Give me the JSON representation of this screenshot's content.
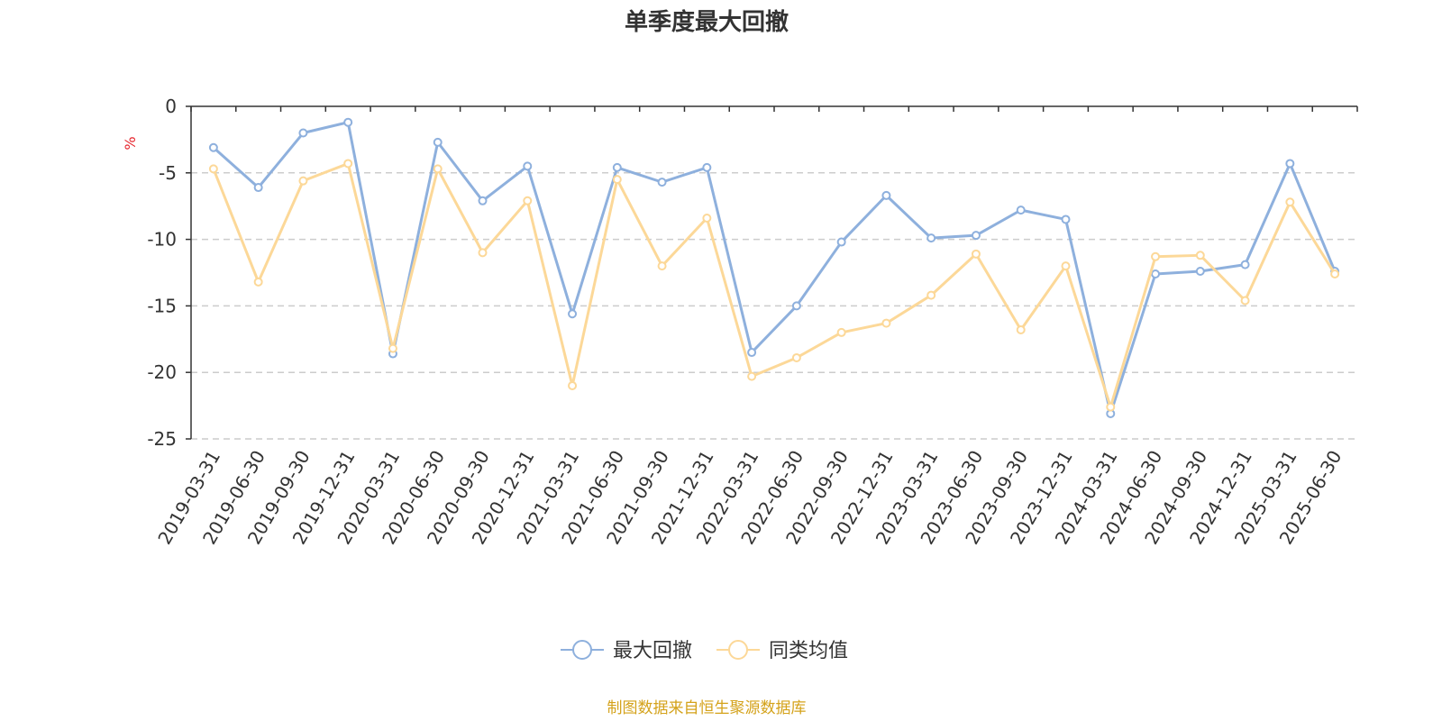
{
  "chart_data": {
    "type": "line",
    "title": "单季度最大回撤",
    "ylabel": "%",
    "ylim": [
      -25,
      0
    ],
    "yticks": [
      0,
      -5,
      -10,
      -15,
      -20,
      -25
    ],
    "grid": true,
    "legend_position": "bottom-center",
    "categories": [
      "2019-03-31",
      "2019-06-30",
      "2019-09-30",
      "2019-12-31",
      "2020-03-31",
      "2020-06-30",
      "2020-09-30",
      "2020-12-31",
      "2021-03-31",
      "2021-06-30",
      "2021-09-30",
      "2021-12-31",
      "2022-03-31",
      "2022-06-30",
      "2022-09-30",
      "2022-12-31",
      "2023-03-31",
      "2023-06-30",
      "2023-09-30",
      "2023-12-31",
      "2024-03-31",
      "2024-06-30",
      "2024-09-30",
      "2024-12-31",
      "2025-03-31",
      "2025-06-30"
    ],
    "series": [
      {
        "name": "最大回撤",
        "color": "#8eb0dd",
        "values": [
          -3.1,
          -6.1,
          -2.0,
          -1.2,
          -18.6,
          -2.7,
          -7.1,
          -4.5,
          -15.6,
          -4.6,
          -5.7,
          -4.6,
          -18.5,
          -15.0,
          -10.2,
          -6.7,
          -9.9,
          -9.7,
          -7.8,
          -8.5,
          -23.1,
          -12.6,
          -12.4,
          -11.9,
          -4.3,
          -12.4
        ]
      },
      {
        "name": "同类均值",
        "color": "#fcd898",
        "values": [
          -4.7,
          -13.2,
          -5.6,
          -4.3,
          -18.2,
          -4.7,
          -11.0,
          -7.1,
          -21.0,
          -5.5,
          -12.0,
          -8.4,
          -20.3,
          -18.9,
          -17.0,
          -16.3,
          -14.2,
          -11.1,
          -16.8,
          -12.0,
          -22.6,
          -11.3,
          -11.2,
          -14.6,
          -7.2,
          -12.6
        ]
      }
    ]
  },
  "source_text": "制图数据来自恒生聚源数据库",
  "colors": {
    "axis": "#333333",
    "grid": "#cccccc",
    "unit": "#e6262e",
    "source": "#d4a21a"
  }
}
